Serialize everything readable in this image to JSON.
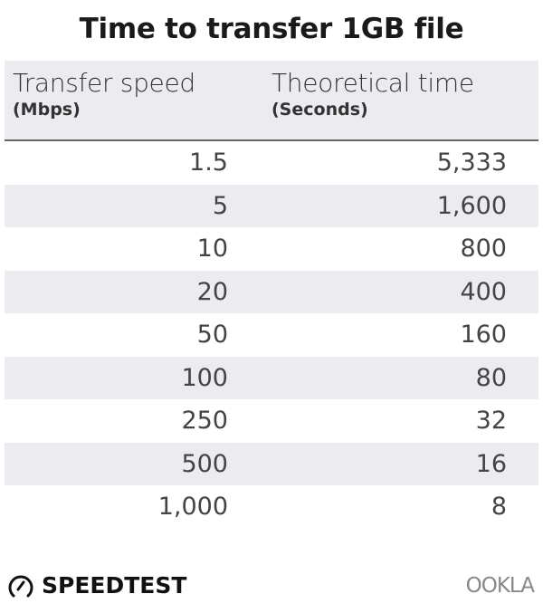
{
  "chart_data": {
    "type": "table",
    "title": "Time to transfer 1GB file",
    "columns": [
      {
        "label": "Transfer speed",
        "unit": "(Mbps)"
      },
      {
        "label": "Theoretical time",
        "unit": "(Seconds)"
      }
    ],
    "rows": [
      [
        "1.5",
        "5,333"
      ],
      [
        "5",
        "1,600"
      ],
      [
        "10",
        "800"
      ],
      [
        "20",
        "400"
      ],
      [
        "50",
        "160"
      ],
      [
        "100",
        "80"
      ],
      [
        "250",
        "32"
      ],
      [
        "500",
        "16"
      ],
      [
        "1,000",
        "8"
      ]
    ],
    "colors": {
      "header_bg": "#ececf0",
      "stripe": "#ececf0",
      "divider": "#666666"
    }
  },
  "logos": {
    "left": "SPEEDTEST",
    "right": "OOKLA"
  }
}
